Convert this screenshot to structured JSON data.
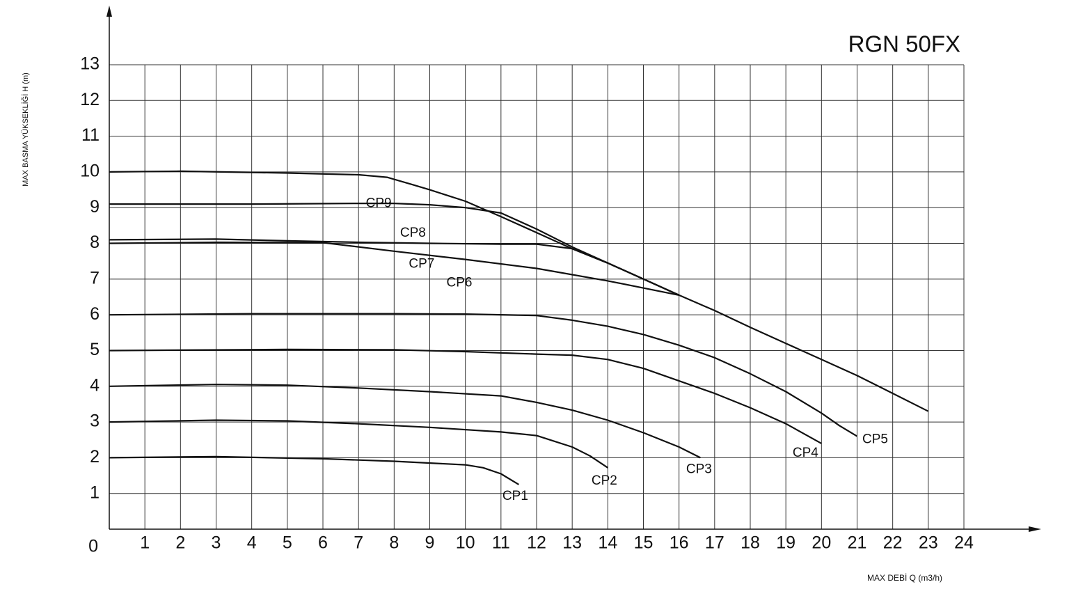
{
  "chart_data": {
    "type": "line",
    "title": "RGN 50FX",
    "x_label": "MAX DEBİ  Q (m3/h)",
    "y_label": "MAX BASMA YÜKSEKLİĞİ H (m)",
    "xlim": [
      0,
      24
    ],
    "ylim": [
      0,
      13
    ],
    "xticks": [
      1,
      2,
      3,
      4,
      5,
      6,
      7,
      8,
      9,
      10,
      11,
      12,
      13,
      14,
      15,
      16,
      17,
      18,
      19,
      20,
      21,
      22,
      23,
      24
    ],
    "yticks": [
      0,
      1,
      2,
      3,
      4,
      5,
      6,
      7,
      8,
      9,
      10,
      11,
      12,
      13
    ],
    "grid": true,
    "series": [
      {
        "name": "CP1",
        "color": "#111111",
        "x": [
          0,
          3,
          6,
          8,
          10,
          10.5,
          11,
          11.5
        ],
        "values": [
          2,
          2.03,
          1.97,
          1.9,
          1.8,
          1.72,
          1.55,
          1.25
        ]
      },
      {
        "name": "CP2",
        "color": "#111111",
        "x": [
          0,
          3,
          5,
          7,
          9,
          11,
          12,
          13,
          13.5,
          14
        ],
        "values": [
          3,
          3.05,
          3.03,
          2.95,
          2.85,
          2.72,
          2.62,
          2.3,
          2.05,
          1.72
        ]
      },
      {
        "name": "CP3",
        "color": "#111111",
        "x": [
          0,
          3,
          5,
          7,
          9,
          11,
          12,
          13,
          14,
          15,
          16,
          16.6
        ],
        "values": [
          4,
          4.05,
          4.03,
          3.95,
          3.85,
          3.73,
          3.55,
          3.33,
          3.05,
          2.7,
          2.3,
          2
        ]
      },
      {
        "name": "CP4",
        "color": "#111111",
        "x": [
          0,
          5,
          8,
          10,
          12,
          13,
          14,
          15,
          16,
          17,
          18,
          19,
          20
        ],
        "values": [
          5,
          5.03,
          5.02,
          4.97,
          4.9,
          4.87,
          4.75,
          4.5,
          4.15,
          3.8,
          3.4,
          2.95,
          2.4
        ]
      },
      {
        "name": "CP5",
        "color": "#111111",
        "x": [
          0,
          4,
          8,
          10,
          12,
          13,
          14,
          15,
          16,
          17,
          18,
          19,
          20,
          20.5,
          21
        ],
        "values": [
          6,
          6.03,
          6.03,
          6.02,
          5.98,
          5.85,
          5.68,
          5.45,
          5.15,
          4.8,
          4.35,
          3.85,
          3.25,
          2.9,
          2.6
        ]
      },
      {
        "name": "CP6",
        "color": "#111111",
        "x": [
          0,
          3,
          6,
          8,
          10,
          12,
          14,
          16,
          17,
          18,
          19,
          20,
          21,
          22,
          23
        ],
        "values": [
          8,
          8.03,
          8.02,
          7.78,
          7.55,
          7.3,
          6.95,
          6.55,
          6.12,
          5.65,
          5.2,
          4.75,
          4.3,
          3.8,
          3.3
        ]
      },
      {
        "name": "CP7",
        "color": "#111111",
        "x": [
          0,
          3,
          5,
          7,
          9,
          11,
          12,
          13,
          14,
          15,
          16
        ],
        "values": [
          8.1,
          8.12,
          8.07,
          8.03,
          8,
          7.98,
          7.98,
          7.85,
          7.45,
          7,
          6.55
        ]
      },
      {
        "name": "CP8",
        "color": "#111111",
        "x": [
          0,
          4,
          7,
          8,
          9,
          10,
          11,
          12,
          13,
          14,
          15,
          16
        ],
        "values": [
          9.1,
          9.1,
          9.12,
          9.12,
          9.08,
          9,
          8.85,
          8.4,
          7.9,
          7.45,
          7,
          6.55
        ]
      },
      {
        "name": "CP9",
        "color": "#111111",
        "x": [
          0,
          2,
          5,
          7,
          7.8,
          8.5,
          9,
          10,
          11,
          12,
          13,
          14,
          15,
          16
        ],
        "values": [
          10,
          10.02,
          9.97,
          9.92,
          9.85,
          9.65,
          9.5,
          9.18,
          8.75,
          8.3,
          7.85,
          7.45,
          7,
          6.55
        ]
      }
    ]
  }
}
